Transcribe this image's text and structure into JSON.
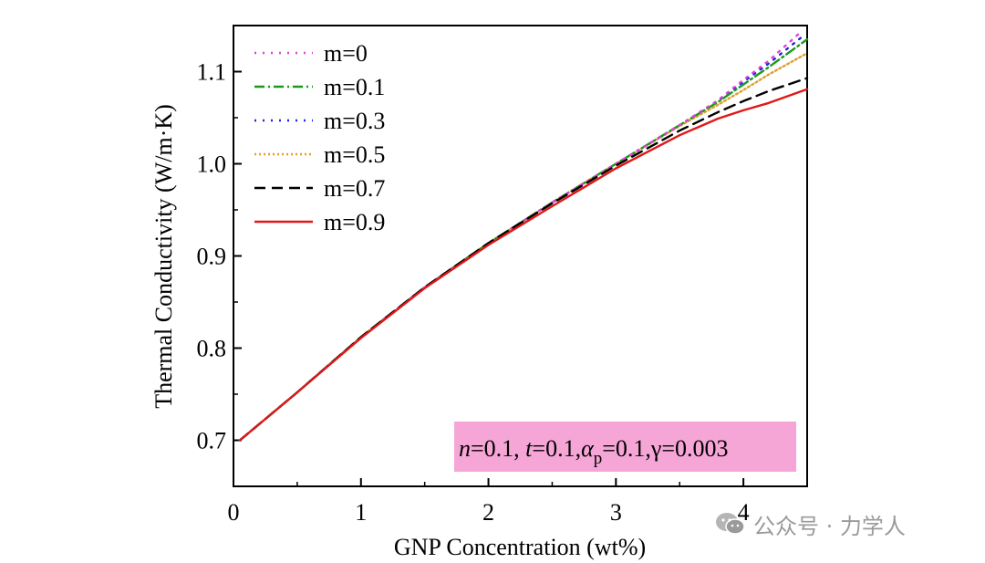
{
  "chart_data": {
    "type": "line",
    "xlabel": "GNP Concentration (wt%)",
    "ylabel": "Thermal Conductivity (W/m·K)",
    "xlim": [
      0,
      4.5
    ],
    "ylim": [
      0.65,
      1.15
    ],
    "xticks": [
      0,
      1,
      2,
      3,
      4
    ],
    "xtick_labels": [
      "0",
      "1",
      "2",
      "3",
      "4"
    ],
    "yticks": [
      0.7,
      0.8,
      0.9,
      1.0,
      1.1
    ],
    "ytick_labels": [
      "0.7",
      "0.8",
      "0.9",
      "1.0",
      "1.1"
    ],
    "legend_position": "top-left",
    "annotation": {
      "n_sym": "n",
      "n_val": "=0.1, ",
      "t_sym": "t",
      "t_val": "=0.1,",
      "alpha_sym": "α",
      "alpha_sub": "p",
      "alpha_val": "=0.1,",
      "gamma": "γ=0.003",
      "background": "#f6a6d6"
    },
    "series": [
      {
        "name": "m=0",
        "color": "#e040e0",
        "dash": "dot",
        "x": [
          0.05,
          0.5,
          1.0,
          1.5,
          2.0,
          2.5,
          3.0,
          3.5,
          3.8,
          4.0,
          4.2,
          4.45
        ],
        "y": [
          0.7,
          0.752,
          0.812,
          0.866,
          0.914,
          0.958,
          1.0,
          1.042,
          1.069,
          1.091,
          1.112,
          1.143
        ]
      },
      {
        "name": "m=0.1",
        "color": "#1a9a1a",
        "dash": "dashdot",
        "x": [
          0.05,
          0.5,
          1.0,
          1.5,
          2.0,
          2.5,
          3.0,
          3.5,
          3.8,
          4.0,
          4.2,
          4.5
        ],
        "y": [
          0.7,
          0.752,
          0.812,
          0.866,
          0.914,
          0.958,
          1.0,
          1.042,
          1.067,
          1.086,
          1.105,
          1.135
        ]
      },
      {
        "name": "m=0.3",
        "color": "#2222dd",
        "dash": "dot",
        "x": [
          0.05,
          0.5,
          1.0,
          1.5,
          2.0,
          2.5,
          3.0,
          3.5,
          3.8,
          4.0,
          4.2,
          4.48
        ],
        "y": [
          0.7,
          0.752,
          0.812,
          0.866,
          0.914,
          0.958,
          1.0,
          1.042,
          1.068,
          1.089,
          1.109,
          1.14
        ]
      },
      {
        "name": "m=0.5",
        "color": "#e0a030",
        "dash": "finedot",
        "x": [
          0.05,
          0.5,
          1.0,
          1.5,
          2.0,
          2.5,
          3.0,
          3.5,
          3.8,
          4.0,
          4.2,
          4.5
        ],
        "y": [
          0.7,
          0.752,
          0.812,
          0.866,
          0.914,
          0.958,
          1.0,
          1.041,
          1.064,
          1.08,
          1.097,
          1.12
        ]
      },
      {
        "name": "m=0.7",
        "color": "#000000",
        "dash": "dash",
        "x": [
          0.05,
          0.5,
          1.0,
          1.5,
          2.0,
          2.5,
          3.0,
          3.5,
          3.8,
          4.0,
          4.2,
          4.5
        ],
        "y": [
          0.7,
          0.752,
          0.812,
          0.866,
          0.914,
          0.957,
          0.998,
          1.036,
          1.056,
          1.068,
          1.079,
          1.093
        ]
      },
      {
        "name": "m=0.9",
        "color": "#e01818",
        "dash": "solid",
        "x": [
          0.05,
          0.5,
          1.0,
          1.5,
          2.0,
          2.5,
          3.0,
          3.5,
          3.8,
          4.0,
          4.2,
          4.5
        ],
        "y": [
          0.7,
          0.752,
          0.811,
          0.865,
          0.912,
          0.954,
          0.995,
          1.031,
          1.049,
          1.058,
          1.066,
          1.081
        ]
      }
    ]
  },
  "watermark": {
    "text": "公众号 · 力学人",
    "icon": "wechat-icon"
  }
}
